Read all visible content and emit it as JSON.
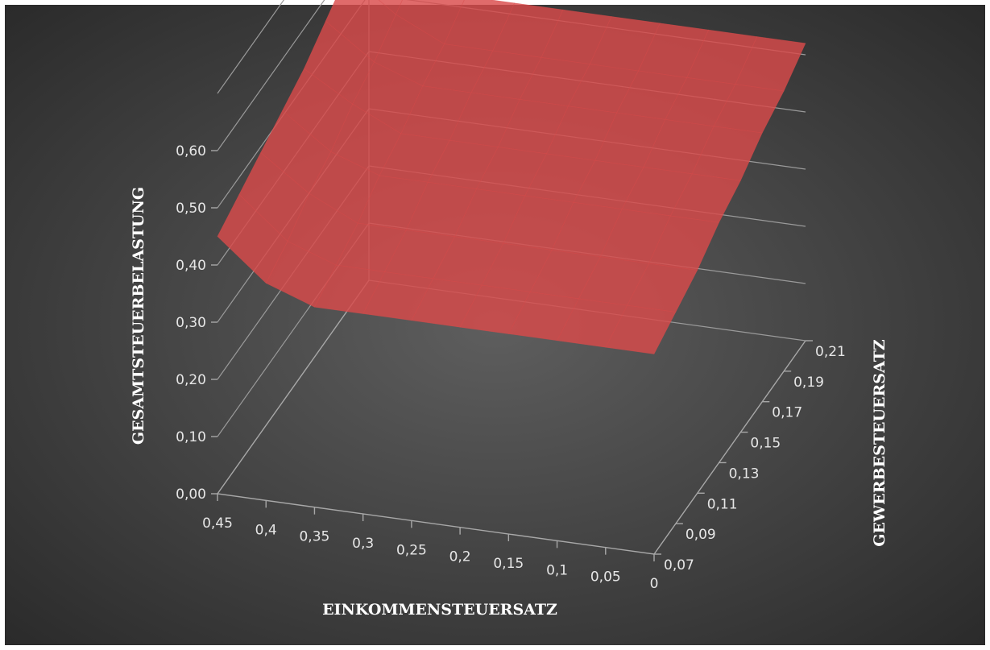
{
  "chart_data": {
    "type": "surface",
    "title": "",
    "xlabel": "EINKOMMENSTEUERSATZ",
    "ylabel": "GEWERBESTEUERSATZ",
    "zlabel": "GESAMTSTEUERBELASTUNG",
    "x_categories": [
      "0,45",
      "0,4",
      "0,35",
      "0,3",
      "0,25",
      "0,2",
      "0,15",
      "0,1",
      "0,05",
      "0"
    ],
    "y_categories": [
      "0,07",
      "0,09",
      "0,11",
      "0,13",
      "0,15",
      "0,17",
      "0,19",
      "0,21"
    ],
    "z_ticks": [
      "0,00",
      "0,10",
      "0,20",
      "0,30",
      "0,40",
      "0,50",
      "0,60"
    ],
    "zlim": [
      0,
      0.7
    ],
    "surface": {
      "description_axes": "rows follow y_categories (0,07 .. 0,21), columns follow x_categories (0,45 .. 0)",
      "z": [
        [
          0.45,
          0.38,
          0.35,
          0.35,
          0.35,
          0.35,
          0.35,
          0.35,
          0.35,
          0.35
        ],
        [
          0.47,
          0.4,
          0.37,
          0.37,
          0.37,
          0.37,
          0.37,
          0.37,
          0.37,
          0.37
        ],
        [
          0.49,
          0.43,
          0.39,
          0.39,
          0.39,
          0.39,
          0.39,
          0.39,
          0.39,
          0.39
        ],
        [
          0.51,
          0.45,
          0.42,
          0.42,
          0.42,
          0.42,
          0.42,
          0.42,
          0.42,
          0.42
        ],
        [
          0.53,
          0.48,
          0.44,
          0.44,
          0.44,
          0.44,
          0.44,
          0.44,
          0.44,
          0.44
        ],
        [
          0.56,
          0.5,
          0.47,
          0.47,
          0.47,
          0.47,
          0.47,
          0.47,
          0.47,
          0.47
        ],
        [
          0.59,
          0.53,
          0.49,
          0.49,
          0.49,
          0.49,
          0.49,
          0.49,
          0.49,
          0.49
        ],
        [
          0.63,
          0.56,
          0.52,
          0.52,
          0.52,
          0.52,
          0.52,
          0.52,
          0.52,
          0.52
        ]
      ]
    },
    "colors": {
      "background_center": "#5c5c5c",
      "background_edge": "#2e2e2e",
      "surface_fill": "#d94b4b",
      "gridline": "#9a9a9a",
      "text": "#e6e6e6"
    }
  }
}
